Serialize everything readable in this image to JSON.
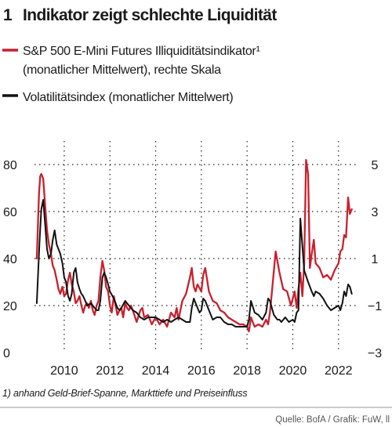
{
  "figure": {
    "number": "1",
    "title": "Indikator zeigt schlechte Liquidität",
    "footnote": "1) anhand Geld-Brief-Spanne, Markttiefe und Preiseinfluss",
    "source": "Quelle: BofA / Grafik: FuW, ll"
  },
  "chart_data": {
    "type": "line",
    "title": "Indikator zeigt schlechte Liquidität",
    "xlabel": "",
    "ylabel_left": "",
    "ylabel_right": "",
    "x_ticks": [
      "2010",
      "2012",
      "2014",
      "2016",
      "2018",
      "2020",
      "2022"
    ],
    "y_left_ticks": [
      "0",
      "20",
      "40",
      "60",
      "80"
    ],
    "y_right_ticks": [
      "−3",
      "−1",
      "1",
      "3",
      "5"
    ],
    "xlim": [
      2008.7,
      2022.9
    ],
    "ylim_left": [
      0,
      90
    ],
    "ylim_right": [
      -3,
      6
    ],
    "grid": "dotted",
    "colors": {
      "illiquidity": "#c8202e",
      "vix": "#111111"
    },
    "series": [
      {
        "name": "S&P 500 E-Mini Futures Illiquiditätsindikator¹",
        "name_line2": "(monatlicher Mittelwert), rechte Skala",
        "color": "#c8202e",
        "axis": "right",
        "x": [
          2008.8,
          2008.9,
          2008.95,
          2009.0,
          2009.08,
          2009.17,
          2009.25,
          2009.33,
          2009.42,
          2009.5,
          2009.58,
          2009.67,
          2009.75,
          2009.83,
          2009.92,
          2010.0,
          2010.08,
          2010.17,
          2010.25,
          2010.33,
          2010.42,
          2010.5,
          2010.58,
          2010.67,
          2010.75,
          2010.83,
          2010.92,
          2011.0,
          2011.08,
          2011.17,
          2011.25,
          2011.33,
          2011.42,
          2011.5,
          2011.58,
          2011.67,
          2011.75,
          2011.83,
          2011.92,
          2012.0,
          2012.08,
          2012.17,
          2012.25,
          2012.33,
          2012.42,
          2012.5,
          2012.58,
          2012.67,
          2012.75,
          2012.83,
          2012.92,
          2013.0,
          2013.17,
          2013.33,
          2013.42,
          2013.5,
          2013.67,
          2013.83,
          2014.0,
          2014.17,
          2014.33,
          2014.5,
          2014.67,
          2014.83,
          2014.92,
          2015.0,
          2015.17,
          2015.33,
          2015.5,
          2015.58,
          2015.67,
          2015.75,
          2015.83,
          2016.0,
          2016.08,
          2016.17,
          2016.33,
          2016.5,
          2016.67,
          2016.83,
          2017.0,
          2017.17,
          2017.33,
          2017.5,
          2017.67,
          2017.83,
          2018.0,
          2018.08,
          2018.17,
          2018.25,
          2018.33,
          2018.5,
          2018.67,
          2018.83,
          2018.92,
          2019.0,
          2019.08,
          2019.25,
          2019.42,
          2019.58,
          2019.75,
          2019.92,
          2020.08,
          2020.17,
          2020.25,
          2020.33,
          2020.42,
          2020.5,
          2020.58,
          2020.67,
          2020.75,
          2020.83,
          2020.92,
          2021.0,
          2021.17,
          2021.33,
          2021.5,
          2021.67,
          2021.83,
          2022.0,
          2022.08,
          2022.17,
          2022.25,
          2022.33,
          2022.42,
          2022.5,
          2022.58
        ],
        "values": [
          1.0,
          3.8,
          4.5,
          4.6,
          4.4,
          3.2,
          2.2,
          1.6,
          1.2,
          0.7,
          0.5,
          0.1,
          -0.3,
          -0.5,
          -0.2,
          -0.6,
          -0.5,
          0.1,
          0.4,
          -0.1,
          -0.4,
          -0.9,
          -0.8,
          -0.6,
          -1.0,
          -1.3,
          -1.0,
          -0.9,
          -1.1,
          -0.8,
          -1.2,
          -1.4,
          -1.0,
          -0.8,
          0.2,
          0.9,
          0.5,
          -0.2,
          -0.4,
          -1.0,
          -1.3,
          -0.6,
          -1.0,
          -1.4,
          -1.2,
          -1.1,
          -1.5,
          -0.9,
          -1.1,
          -1.2,
          -1.0,
          -1.2,
          -1.7,
          -1.2,
          -1.1,
          -1.5,
          -1.4,
          -1.8,
          -1.5,
          -1.8,
          -1.6,
          -1.9,
          -1.3,
          -1.5,
          -1.1,
          -1.6,
          -0.8,
          -0.5,
          0.2,
          0.6,
          -0.2,
          -0.4,
          -0.1,
          -0.4,
          0.3,
          0.6,
          -0.4,
          -0.8,
          -0.9,
          -1.2,
          -1.3,
          -1.5,
          -1.6,
          -1.7,
          -1.8,
          -1.8,
          -1.9,
          -2.1,
          -1.5,
          -1.7,
          -1.9,
          -1.8,
          -1.9,
          -1.6,
          -1.8,
          -1.3,
          -0.5,
          1.3,
          0.4,
          -0.3,
          -0.4,
          -1.0,
          -0.4,
          -1.1,
          -0.3,
          0.4,
          -0.6,
          0.8,
          5.2,
          4.6,
          0.6,
          1.2,
          1.8,
          0.8,
          0.6,
          0.2,
          0.3,
          0.1,
          0.5,
          0.8,
          1.3,
          1.4,
          2.0,
          1.9,
          3.6,
          2.9,
          3.1
        ]
      },
      {
        "name": "Volatilitätsindex (monatlicher Mittelwert)",
        "color": "#111111",
        "axis": "left",
        "x": [
          2008.8,
          2008.92,
          2009.0,
          2009.08,
          2009.17,
          2009.25,
          2009.33,
          2009.42,
          2009.5,
          2009.58,
          2009.67,
          2009.75,
          2009.83,
          2009.92,
          2010.0,
          2010.08,
          2010.17,
          2010.25,
          2010.33,
          2010.42,
          2010.5,
          2010.58,
          2010.67,
          2010.75,
          2010.83,
          2010.92,
          2011.0,
          2011.17,
          2011.33,
          2011.42,
          2011.5,
          2011.58,
          2011.67,
          2011.75,
          2011.83,
          2011.92,
          2012.0,
          2012.17,
          2012.33,
          2012.42,
          2012.5,
          2012.67,
          2012.83,
          2013.0,
          2013.17,
          2013.33,
          2013.5,
          2013.67,
          2013.83,
          2014.0,
          2014.17,
          2014.33,
          2014.5,
          2014.67,
          2014.83,
          2015.0,
          2015.17,
          2015.33,
          2015.5,
          2015.58,
          2015.67,
          2015.75,
          2015.92,
          2016.0,
          2016.08,
          2016.17,
          2016.33,
          2016.5,
          2016.67,
          2016.83,
          2017.0,
          2017.17,
          2017.33,
          2017.5,
          2017.67,
          2017.83,
          2018.0,
          2018.08,
          2018.17,
          2018.33,
          2018.5,
          2018.67,
          2018.83,
          2018.92,
          2019.0,
          2019.17,
          2019.33,
          2019.42,
          2019.5,
          2019.67,
          2019.83,
          2020.0,
          2020.08,
          2020.17,
          2020.25,
          2020.33,
          2020.5,
          2020.67,
          2020.83,
          2020.92,
          2021.0,
          2021.17,
          2021.33,
          2021.5,
          2021.67,
          2021.83,
          2022.0,
          2022.08,
          2022.17,
          2022.25,
          2022.33,
          2022.42,
          2022.5,
          2022.58
        ],
        "values": [
          21,
          47,
          61,
          65,
          54,
          44,
          40,
          42,
          48,
          52,
          46,
          44,
          42,
          38,
          32,
          30,
          24,
          22,
          25,
          34,
          36,
          30,
          27,
          25,
          24,
          22,
          20,
          21,
          19,
          18,
          18,
          22,
          32,
          34,
          32,
          29,
          26,
          23,
          19,
          18,
          19,
          22,
          20,
          18,
          17,
          15,
          14,
          15,
          15,
          15,
          14,
          13,
          14,
          13,
          14,
          15,
          14,
          13,
          13,
          19,
          23,
          21,
          17,
          18,
          23,
          22,
          18,
          14,
          15,
          15,
          13,
          12,
          12,
          11,
          11,
          11,
          11,
          14,
          22,
          17,
          16,
          14,
          17,
          23,
          22,
          16,
          14,
          14,
          13,
          15,
          13,
          14,
          13,
          17,
          18,
          57,
          35,
          30,
          26,
          24,
          26,
          25,
          23,
          20,
          18,
          19,
          20,
          18,
          21,
          26,
          24,
          29,
          28,
          25
        ]
      }
    ]
  }
}
